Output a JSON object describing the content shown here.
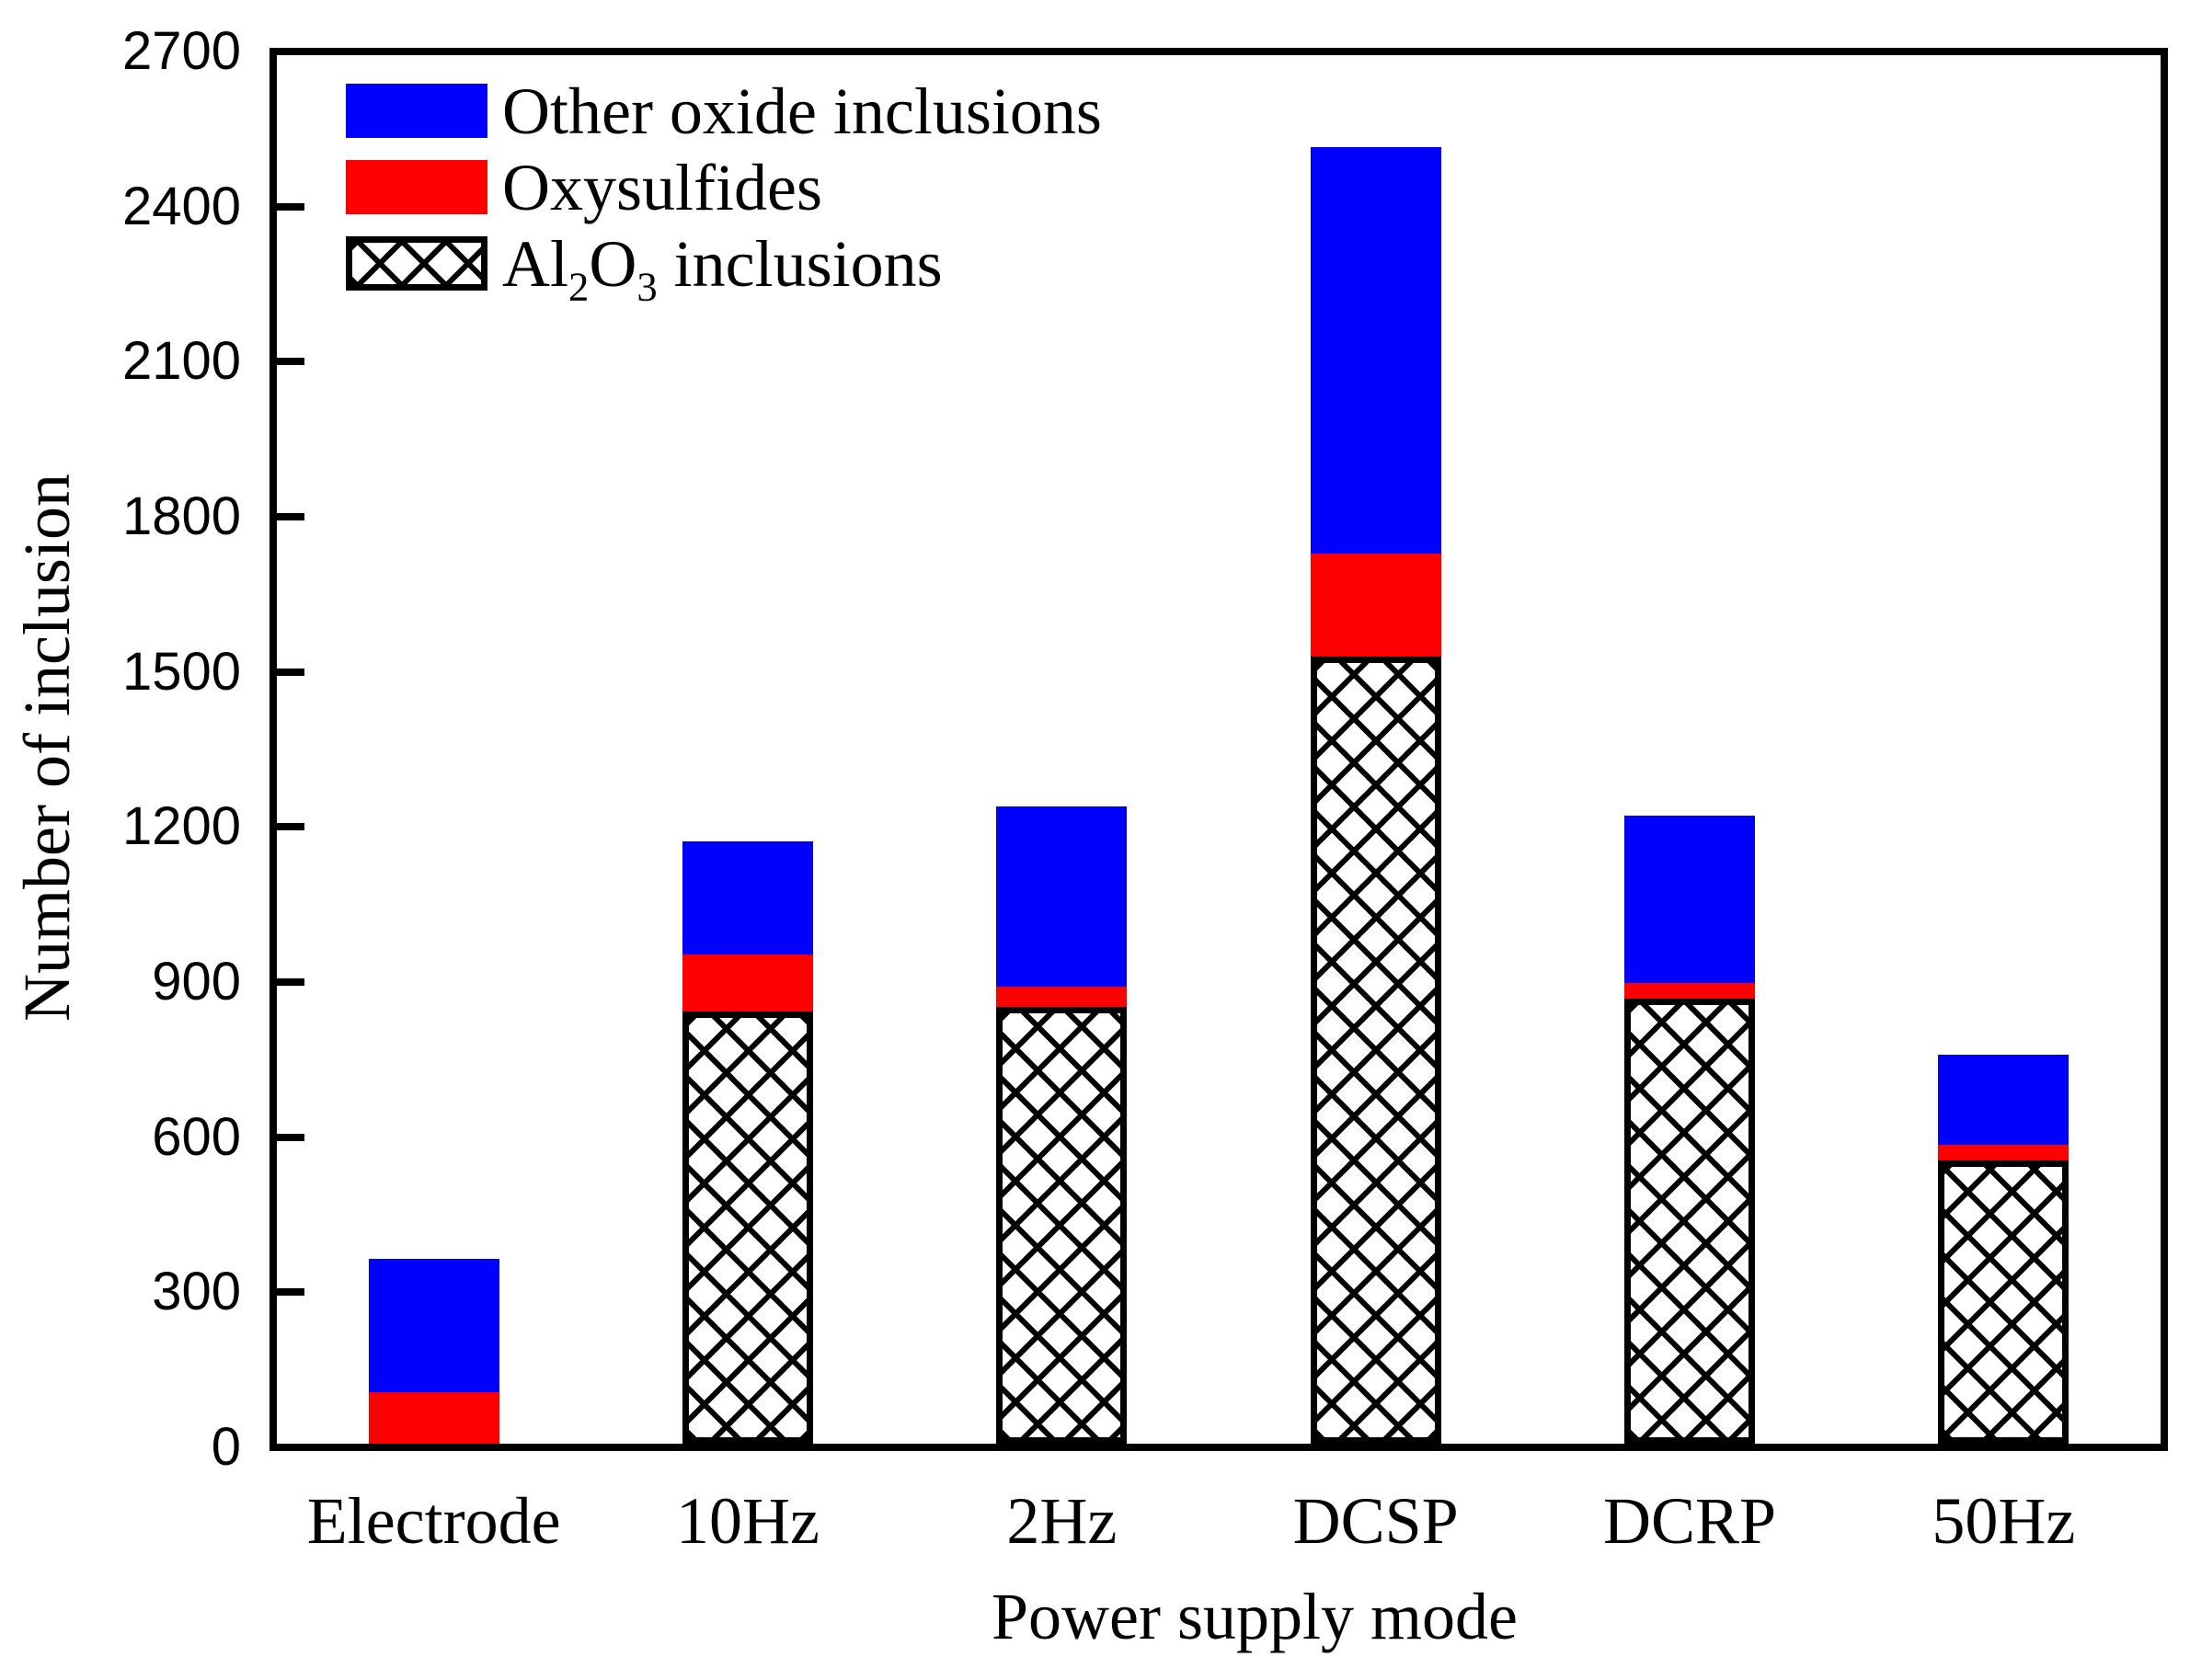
{
  "chart_data": {
    "type": "bar",
    "subtype": "stacked-vertical",
    "categories": [
      "Electrode",
      "10Hz",
      "2Hz",
      "DCSP",
      "DCRP",
      "50Hz"
    ],
    "series": [
      {
        "name": "Al2O3 inclusions",
        "name_parts": [
          {
            "t": "Al"
          },
          {
            "t": "2",
            "sub": true
          },
          {
            "t": "O"
          },
          {
            "t": "3",
            "sub": true
          },
          {
            "t": " inclusions"
          }
        ],
        "style": "crosshatch",
        "fill": "#ffffff",
        "hatch_color": "#000000",
        "values": [
          0,
          840,
          850,
          1530,
          865,
          550
        ]
      },
      {
        "name": "Oxysulfides",
        "name_parts": [
          {
            "t": "Oxysulfides"
          }
        ],
        "style": "solid",
        "fill": "#ff0000",
        "values": [
          100,
          110,
          40,
          200,
          30,
          30
        ]
      },
      {
        "name": "Other oxide inclusions",
        "name_parts": [
          {
            "t": "Other oxide inclusions"
          }
        ],
        "style": "solid",
        "fill": "#0000ff",
        "values": [
          260,
          220,
          350,
          790,
          325,
          175
        ]
      }
    ],
    "stack_totals": [
      360,
      1170,
      1240,
      2520,
      1220,
      755
    ],
    "xlabel": "Power supply mode",
    "ylabel": "Number of inclusion",
    "ylim": [
      0,
      2700
    ],
    "ytick_step": 300,
    "yticks": [
      0,
      300,
      600,
      900,
      1200,
      1500,
      1800,
      2100,
      2400,
      2700
    ],
    "grid": false,
    "legend_position": "top-left-inside",
    "legend_order_top_to_bottom": [
      "Other oxide inclusions",
      "Oxysulfides",
      "Al2O3 inclusions"
    ],
    "frame": "full-box",
    "tick_direction": "in"
  },
  "colors": {
    "other_oxide": "#0000ff",
    "oxysulfides": "#ff0000",
    "axis": "#000000",
    "background": "#ffffff"
  }
}
